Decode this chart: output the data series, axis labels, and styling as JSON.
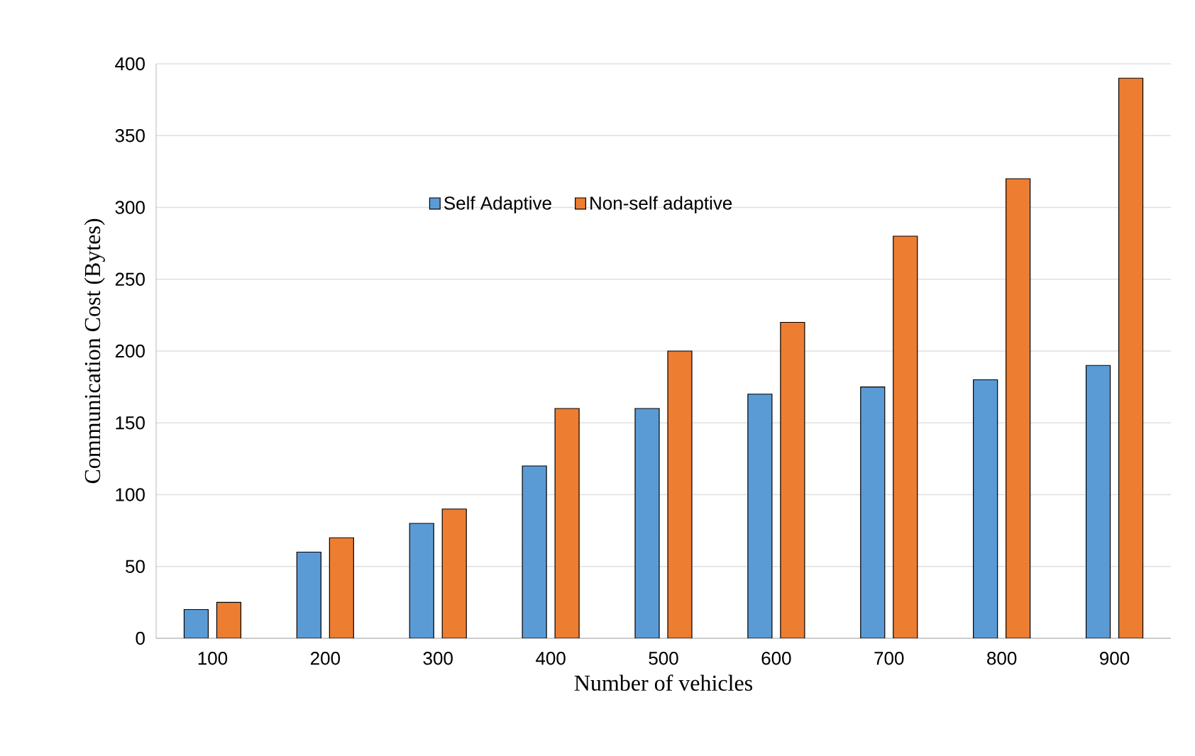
{
  "chart_data": {
    "type": "bar",
    "xlabel": "Number of vehicles",
    "ylabel": "Communication Cost (Bytes)",
    "categories": [
      "100",
      "200",
      "300",
      "400",
      "500",
      "600",
      "700",
      "800",
      "900"
    ],
    "series": [
      {
        "name": "Self Adaptive",
        "color": "#5b9bd5",
        "values": [
          20,
          60,
          80,
          120,
          160,
          170,
          175,
          180,
          190
        ]
      },
      {
        "name": "Non-self adaptive",
        "color": "#ed7d31",
        "values": [
          25,
          70,
          90,
          160,
          200,
          220,
          280,
          320,
          390
        ]
      }
    ],
    "ylim": [
      0,
      400
    ],
    "yticks": [
      0,
      50,
      100,
      150,
      200,
      250,
      300,
      350,
      400
    ],
    "grid": "y",
    "legend": "top"
  }
}
